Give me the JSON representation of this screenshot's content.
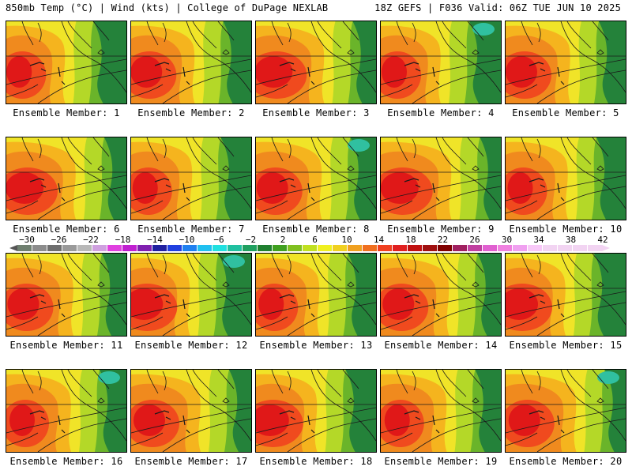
{
  "header": {
    "left": "850mb Temp (°C) | Wind (kts) | College of DuPage NEXLAB",
    "right": "18Z GEFS | F036 Valid: 06Z TUE JUN 10 2025"
  },
  "members": [
    {
      "label": "Ensemble Member: 1"
    },
    {
      "label": "Ensemble Member: 2"
    },
    {
      "label": "Ensemble Member: 3"
    },
    {
      "label": "Ensemble Member: 4"
    },
    {
      "label": "Ensemble Member: 5"
    },
    {
      "label": "Ensemble Member: 6"
    },
    {
      "label": "Ensemble Member: 7"
    },
    {
      "label": "Ensemble Member: 8"
    },
    {
      "label": "Ensemble Member: 9"
    },
    {
      "label": "Ensemble Member: 10"
    },
    {
      "label": "Ensemble Member: 11"
    },
    {
      "label": "Ensemble Member: 12"
    },
    {
      "label": "Ensemble Member: 13"
    },
    {
      "label": "Ensemble Member: 14"
    },
    {
      "label": "Ensemble Member: 15"
    },
    {
      "label": "Ensemble Member: 16"
    },
    {
      "label": "Ensemble Member: 17"
    },
    {
      "label": "Ensemble Member: 18"
    },
    {
      "label": "Ensemble Member: 19"
    },
    {
      "label": "Ensemble Member: 20"
    }
  ],
  "colorbar": {
    "labels": [
      "−30",
      "−26",
      "−22",
      "−18",
      "−14",
      "−10",
      "−6",
      "−2",
      "2",
      "6",
      "10",
      "14",
      "18",
      "22",
      "26",
      "30",
      "34",
      "38",
      "42"
    ],
    "colors": [
      "#6f7f6f",
      "#8c8c8c",
      "#6e6e6e",
      "#9a9a9a",
      "#b8b8b8",
      "#cfa0df",
      "#e040e0",
      "#c020d0",
      "#8020b0",
      "#2020a0",
      "#2040e0",
      "#2080f0",
      "#20c0f0",
      "#20e0e0",
      "#20c0a0",
      "#20a060",
      "#208030",
      "#40a020",
      "#80c020",
      "#c0e020",
      "#f0f020",
      "#f0d020",
      "#f0a020",
      "#f07020",
      "#f04020",
      "#e02020",
      "#c01010",
      "#a01010",
      "#800000",
      "#a02060",
      "#c040a0",
      "#e060d0",
      "#f080e0",
      "#f0a0f0",
      "#f8c8f8",
      "#f2d4f2",
      "#f2d4f2",
      "#f2d4f2",
      "#f2d4f2"
    ]
  },
  "palette": {
    "hot_core": "#e01818",
    "hot": "#f04a1e",
    "warm_orange": "#f08a1e",
    "orange_yellow": "#f5b41e",
    "yellow": "#f0e428",
    "yellow_green": "#b4d828",
    "light_green": "#6ab42a",
    "green": "#3c9a2e",
    "dark_green": "#24823a",
    "teal": "#30c0a0",
    "lines": "#1a1a1a"
  }
}
